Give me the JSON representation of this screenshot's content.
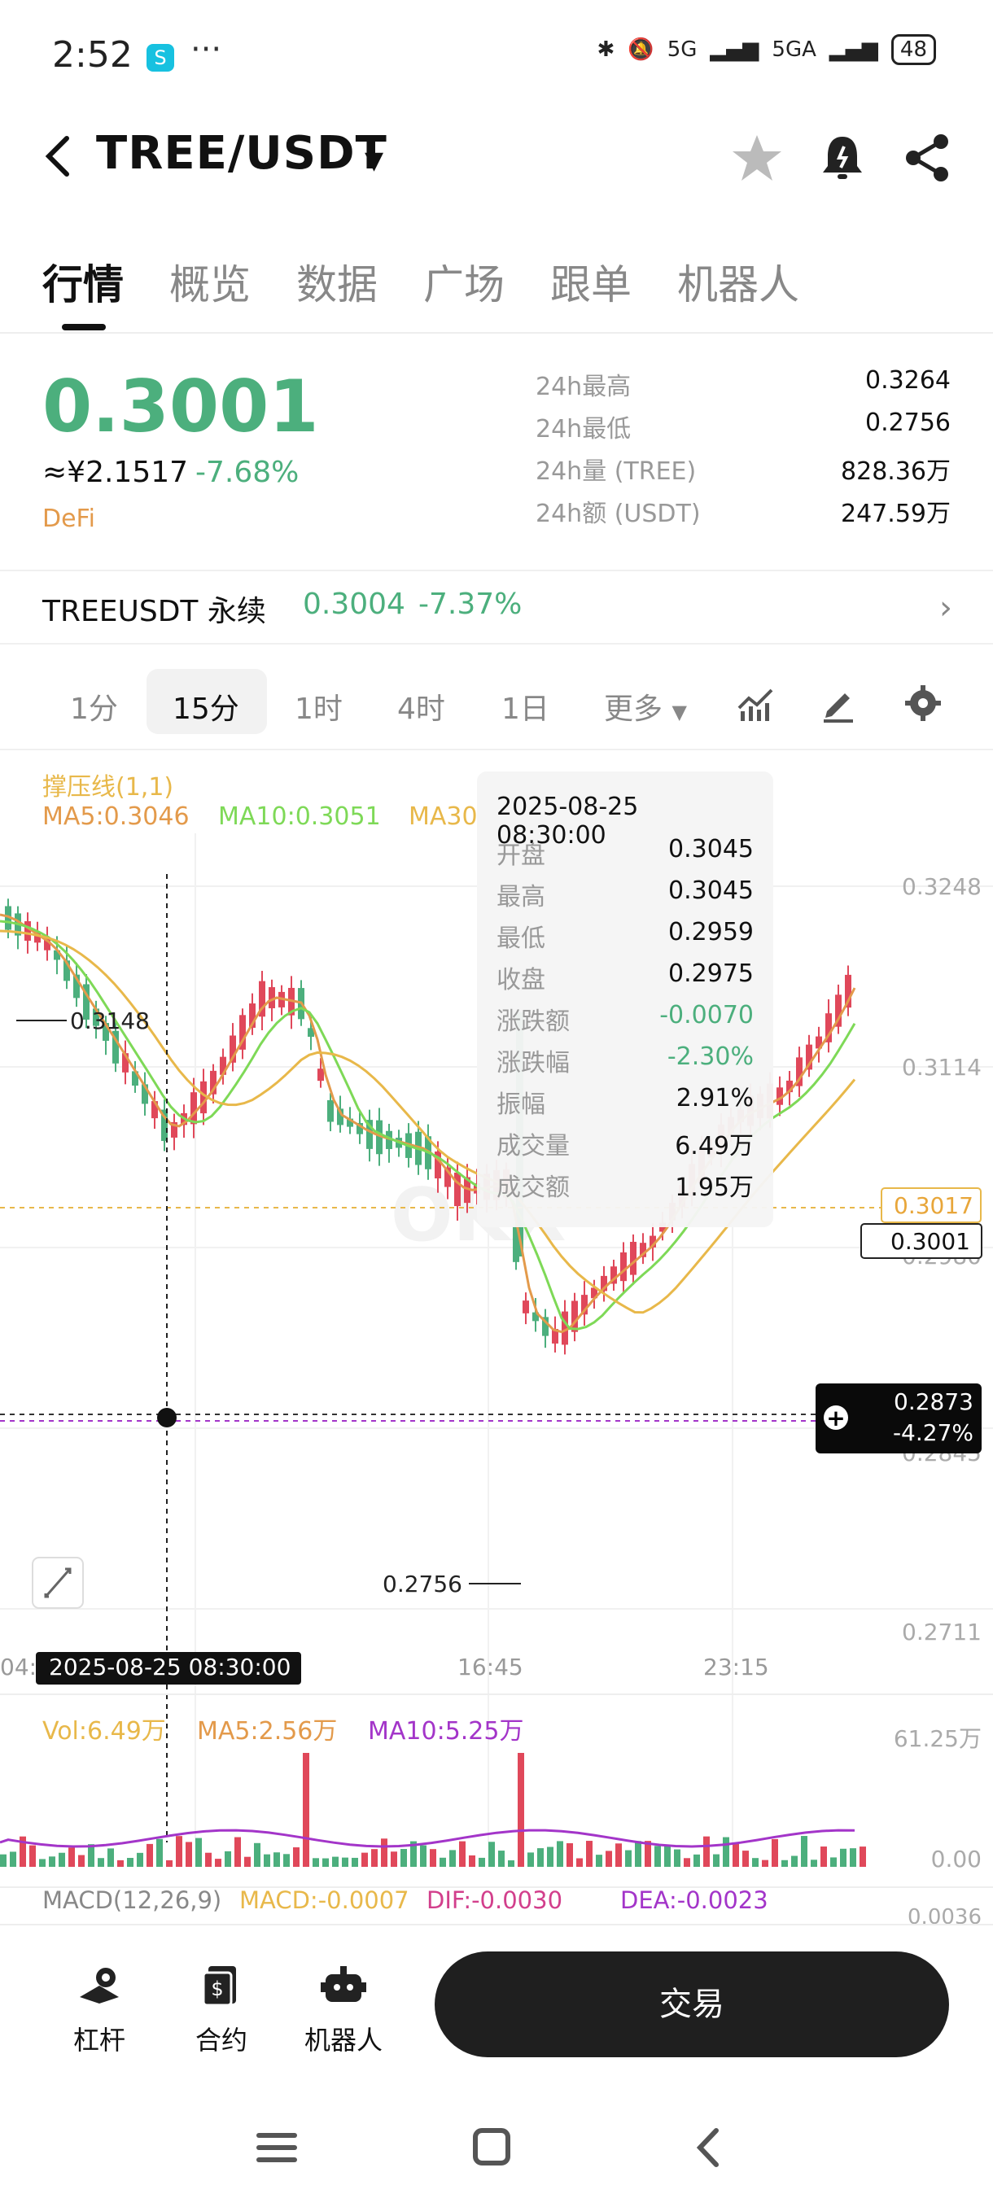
{
  "status": {
    "time": "2:52",
    "dots": "···",
    "net1": "5G",
    "net2": "5GA",
    "battery": "48"
  },
  "header": {
    "pair": "TREE/USDT"
  },
  "tabs": [
    "行情",
    "概览",
    "数据",
    "广场",
    "跟单",
    "机器人"
  ],
  "ticker": {
    "price": "0.3001",
    "cny": "≈¥2.1517",
    "change": "-7.68%",
    "tag": "DeFi",
    "stats": [
      {
        "label": "24h最高",
        "value": "0.3264"
      },
      {
        "label": "24h最低",
        "value": "0.2756"
      },
      {
        "label": "24h量 (TREE)",
        "value": "828.36万"
      },
      {
        "label": "24h额 (USDT)",
        "value": "247.59万"
      }
    ]
  },
  "perp": {
    "name": "TREEUSDT 永续",
    "price": "0.3004",
    "change": "-7.37%"
  },
  "intervals": [
    "1分",
    "15分",
    "1时",
    "4时",
    "1日",
    "更多"
  ],
  "chart": {
    "indicator": "撑压线(1,1)",
    "ma5": "MA5:0.3046",
    "ma10": "MA10:0.3051",
    "ma30": "MA30",
    "y_ticks": [
      "0.3248",
      "0.3114",
      "0.2980",
      "0.2845",
      "0.2711"
    ],
    "x_ticks": [
      "04:",
      "16:45",
      "23:15"
    ],
    "cursor_time": "2025-08-25 08:30:00",
    "high_marker": "0.3148",
    "low_marker": "0.2756",
    "last_price": "0.3001",
    "resistance": "0.3017",
    "cursor_price": "0.2873",
    "cursor_pct": "-4.27%",
    "vol": "Vol:6.49万",
    "vol_ma5": "MA5:2.56万",
    "vol_ma10": "MA10:5.25万",
    "vol_max": "61.25万",
    "vol_min": "0.00",
    "macd_label": "MACD(12,26,9)",
    "macd": "MACD:-0.0007",
    "dif": "DIF:-0.0030",
    "dea": "DEA:-0.0023",
    "macd_tick": "0.0036",
    "watermark": "OKX"
  },
  "tooltip": {
    "date": "2025-08-25 08:30:00",
    "rows": [
      {
        "label": "开盘",
        "value": "0.3045"
      },
      {
        "label": "最高",
        "value": "0.3045"
      },
      {
        "label": "最低",
        "value": "0.2959"
      },
      {
        "label": "收盘",
        "value": "0.2975"
      },
      {
        "label": "涨跌额",
        "value": "-0.0070"
      },
      {
        "label": "涨跌幅",
        "value": "-2.30%"
      },
      {
        "label": "振幅",
        "value": "2.91%"
      },
      {
        "label": "成交量",
        "value": "6.49万"
      },
      {
        "label": "成交额",
        "value": "1.95万"
      }
    ]
  },
  "bottom": {
    "leverage": "杠杆",
    "contract": "合约",
    "bot": "机器人",
    "trade": "交易"
  },
  "colors": {
    "up": "#e0485a",
    "down": "#4caf7d",
    "ma5": "#e39a4b",
    "ma10": "#7ed957",
    "ma30": "#e8b84a",
    "purple": "#a335c9"
  }
}
